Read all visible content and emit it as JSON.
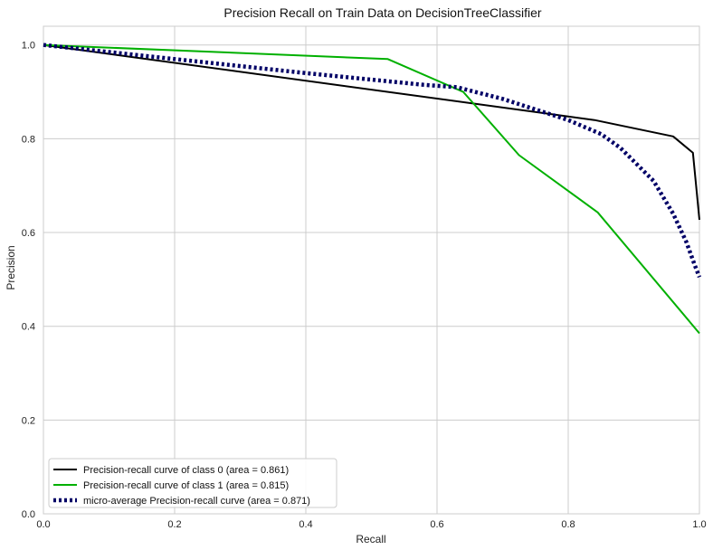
{
  "chart_data": {
    "type": "line",
    "title": "Precision Recall on Train Data on DecisionTreeClassifier",
    "xlabel": "Recall",
    "ylabel": "Precision",
    "xlim": [
      0,
      1
    ],
    "ylim": [
      0,
      1.04
    ],
    "xticks": [
      "0.0",
      "0.2",
      "0.4",
      "0.6",
      "0.8",
      "1.0"
    ],
    "yticks": [
      "0.0",
      "0.2",
      "0.4",
      "0.6",
      "0.8",
      "1.0"
    ],
    "grid": true,
    "legend_position": "lower-left",
    "series": [
      {
        "name": "Precision-recall curve of class 0 (area = 0.861)",
        "color": "#000000",
        "style": "solid",
        "points": [
          [
            0.0,
            1.0
          ],
          [
            0.84,
            0.84
          ],
          [
            0.96,
            0.805
          ],
          [
            0.99,
            0.77
          ],
          [
            1.0,
            0.627
          ]
        ]
      },
      {
        "name": "Precision-recall curve of class 1 (area = 0.815)",
        "color": "#00b000",
        "style": "solid",
        "points": [
          [
            0.0,
            1.0
          ],
          [
            0.525,
            0.97
          ],
          [
            0.64,
            0.9
          ],
          [
            0.725,
            0.765
          ],
          [
            0.845,
            0.643
          ],
          [
            1.0,
            0.385
          ]
        ]
      },
      {
        "name": "micro-average Precision-recall curve (area = 0.871)",
        "color": "#000066",
        "style": "dotted",
        "points": [
          [
            0.0,
            1.0
          ],
          [
            0.2,
            0.97
          ],
          [
            0.4,
            0.94
          ],
          [
            0.58,
            0.915
          ],
          [
            0.63,
            0.91
          ],
          [
            0.7,
            0.885
          ],
          [
            0.8,
            0.84
          ],
          [
            0.85,
            0.81
          ],
          [
            0.88,
            0.78
          ],
          [
            0.93,
            0.71
          ],
          [
            0.96,
            0.64
          ],
          [
            0.98,
            0.58
          ],
          [
            0.993,
            0.53
          ],
          [
            1.0,
            0.505
          ]
        ]
      }
    ]
  }
}
